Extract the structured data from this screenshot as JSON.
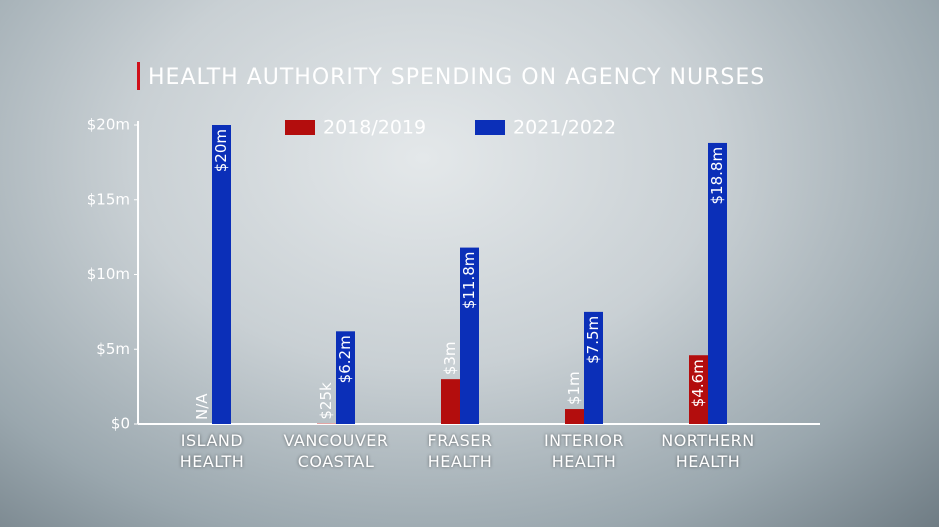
{
  "chart_data": {
    "type": "bar",
    "title": "HEALTH AUTHORITY SPENDING ON AGENCY NURSES",
    "categories": [
      "ISLAND HEALTH",
      "VANCOUVER COASTAL",
      "FRASER HEALTH",
      "INTERIOR HEALTH",
      "NORTHERN HEALTH"
    ],
    "series": [
      {
        "name": "2018/2019",
        "color": "#b30d0d",
        "values": [
          null,
          0.025,
          3,
          1,
          4.6
        ],
        "value_labels": [
          "N/A",
          "$25k",
          "$3m",
          "$1m",
          "$4.6m"
        ]
      },
      {
        "name": "2021/2022",
        "color": "#0b2fb8",
        "values": [
          20,
          6.2,
          11.8,
          7.5,
          18.8
        ],
        "value_labels": [
          "$20m",
          "$6.2m",
          "$11.8m",
          "$7.5m",
          "$18.8m"
        ]
      }
    ],
    "ylim": [
      0,
      20
    ],
    "yticks": [
      {
        "value": 0,
        "label": "$0"
      },
      {
        "value": 5,
        "label": "$5m"
      },
      {
        "value": 10,
        "label": "$10m"
      },
      {
        "value": 15,
        "label": "$15m"
      },
      {
        "value": 20,
        "label": "$20m"
      }
    ]
  }
}
